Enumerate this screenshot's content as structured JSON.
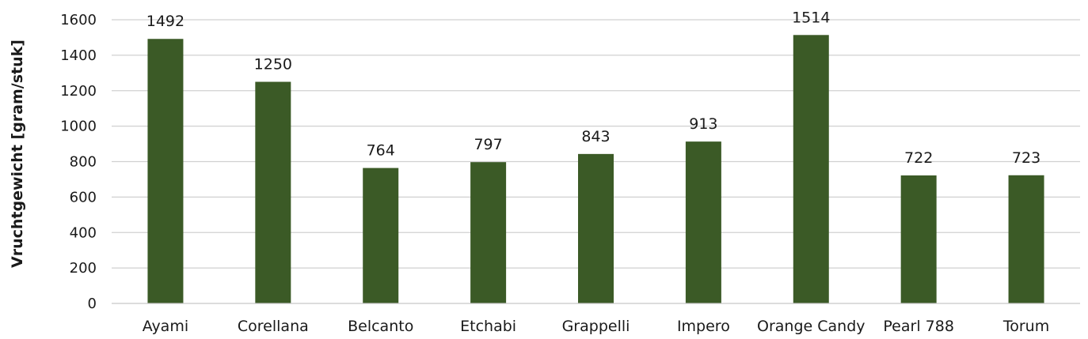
{
  "chart_data": {
    "type": "bar",
    "title": "",
    "xlabel": "",
    "ylabel": "Vruchtgewicht [gram/stuk]",
    "categories": [
      "Ayami",
      "Corellana",
      "Belcanto",
      "Etchabi",
      "Grappelli",
      "Impero",
      "Orange Candy",
      "Pearl 788",
      "Torum"
    ],
    "values": [
      1492,
      1250,
      764,
      797,
      843,
      913,
      1514,
      722,
      723
    ],
    "data_labels": [
      "1492",
      "1250",
      "764",
      "797",
      "843",
      "913",
      "1514",
      "722",
      "723"
    ],
    "ylim": [
      0,
      1600
    ],
    "yticks": [
      0,
      200,
      400,
      600,
      800,
      1000,
      1200,
      1400,
      1600
    ],
    "grid": true,
    "legend": "none",
    "bar_color": "#3b5a26",
    "grid_color": "#d0d0d0"
  }
}
